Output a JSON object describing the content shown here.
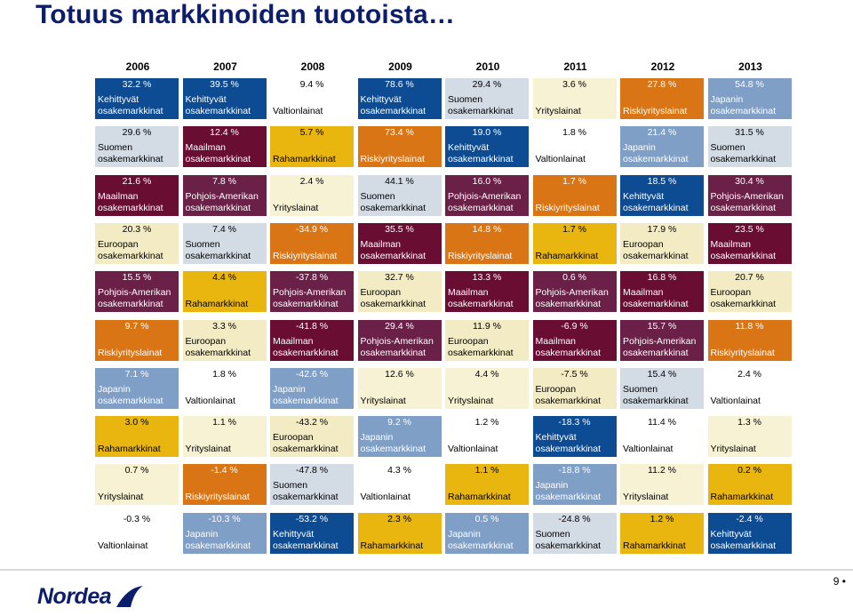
{
  "title": "Totuus markkinoiden tuotoista…",
  "colors": {
    "Kehittyvät\nosakemarkkinat": "#0d4c92",
    "Valtionlainat": "#ffffff",
    "Yrityslainat": "#f7f2d4",
    "Riskiyrityslainat": "#d97514",
    "Japanin\nosakemarkkinat": "#7f9fc6",
    "Suomen\nosakemarkkinat": "#d3dbe5",
    "Maailman\nosakemarkkinat": "#690d33",
    "Rahamarkkinat": "#e9b50f",
    "Pohjois-Amerikan\nosakemarkkinat": "#6b2048",
    "Euroopan\nosakemarkkinat": "#f3ebc3"
  },
  "years": [
    "2006",
    "2007",
    "2008",
    "2009",
    "2010",
    "2011",
    "2012",
    "2013"
  ],
  "columns": [
    [
      {
        "value": "32.2 %",
        "name": "Kehittyvät\nosakemarkkinat"
      },
      {
        "value": "29.6 %",
        "name": "Suomen\nosakemarkkinat"
      },
      {
        "value": "21.6 %",
        "name": "Maailman\nosakemarkkinat"
      },
      {
        "value": "20.3 %",
        "name": "Euroopan\nosakemarkkinat"
      },
      {
        "value": "15.5 %",
        "name": "Pohjois-Amerikan\nosakemarkkinat"
      },
      {
        "value": "9.7 %",
        "name": "Riskiyrityslainat"
      },
      {
        "value": "7.1 %",
        "name": "Japanin\nosakemarkkinat"
      },
      {
        "value": "3.0 %",
        "name": "Rahamarkkinat"
      },
      {
        "value": "0.7 %",
        "name": "Yrityslainat"
      },
      {
        "value": "-0.3 %",
        "name": "Valtionlainat"
      }
    ],
    [
      {
        "value": "39.5 %",
        "name": "Kehittyvät\nosakemarkkinat"
      },
      {
        "value": "12.4 %",
        "name": "Maailman\nosakemarkkinat"
      },
      {
        "value": "7.8 %",
        "name": "Pohjois-Amerikan\nosakemarkkinat"
      },
      {
        "value": "7.4 %",
        "name": "Suomen\nosakemarkkinat"
      },
      {
        "value": "4.4 %",
        "name": "Rahamarkkinat"
      },
      {
        "value": "3.3 %",
        "name": "Euroopan\nosakemarkkinat"
      },
      {
        "value": "1.8 %",
        "name": "Valtionlainat"
      },
      {
        "value": "1.1 %",
        "name": "Yrityslainat"
      },
      {
        "value": "-1.4 %",
        "name": "Riskiyrityslainat"
      },
      {
        "value": "-10.3 %",
        "name": "Japanin\nosakemarkkinat"
      }
    ],
    [
      {
        "value": "9.4 %",
        "name": "Valtionlainat"
      },
      {
        "value": "5.7 %",
        "name": "Rahamarkkinat"
      },
      {
        "value": "2.4 %",
        "name": "Yrityslainat"
      },
      {
        "value": "-34.9 %",
        "name": "Riskiyrityslainat"
      },
      {
        "value": "-37.8 %",
        "name": "Pohjois-Amerikan\nosakemarkkinat"
      },
      {
        "value": "-41.8 %",
        "name": "Maailman\nosakemarkkinat"
      },
      {
        "value": "-42.6 %",
        "name": "Japanin\nosakemarkkinat"
      },
      {
        "value": "-43.2 %",
        "name": "Euroopan\nosakemarkkinat"
      },
      {
        "value": "-47.8 %",
        "name": "Suomen\nosakemarkkinat"
      },
      {
        "value": "-53.2 %",
        "name": "Kehittyvät\nosakemarkkinat"
      }
    ],
    [
      {
        "value": "78.6 %",
        "name": "Kehittyvät\nosakemarkkinat"
      },
      {
        "value": "73.4 %",
        "name": "Riskiyrityslainat"
      },
      {
        "value": "44.1 %",
        "name": "Suomen\nosakemarkkinat"
      },
      {
        "value": "35.5 %",
        "name": "Maailman\nosakemarkkinat"
      },
      {
        "value": "32.7 %",
        "name": "Euroopan\nosakemarkkinat"
      },
      {
        "value": "29.4 %",
        "name": "Pohjois-Amerikan\nosakemarkkinat"
      },
      {
        "value": "12.6 %",
        "name": "Yrityslainat"
      },
      {
        "value": "9.2 %",
        "name": "Japanin\nosakemarkkinat"
      },
      {
        "value": "4.3 %",
        "name": "Valtionlainat"
      },
      {
        "value": "2.3 %",
        "name": "Rahamarkkinat"
      }
    ],
    [
      {
        "value": "29.4 %",
        "name": "Suomen\nosakemarkkinat"
      },
      {
        "value": "19.0 %",
        "name": "Kehittyvät\nosakemarkkinat"
      },
      {
        "value": "16.0 %",
        "name": "Pohjois-Amerikan\nosakemarkkinat"
      },
      {
        "value": "14.8 %",
        "name": "Riskiyrityslainat"
      },
      {
        "value": "13.3 %",
        "name": "Maailman\nosakemarkkinat"
      },
      {
        "value": "11.9 %",
        "name": "Euroopan\nosakemarkkinat"
      },
      {
        "value": "4.4 %",
        "name": "Yrityslainat"
      },
      {
        "value": "1.2 %",
        "name": "Valtionlainat"
      },
      {
        "value": "1.1 %",
        "name": "Rahamarkkinat"
      },
      {
        "value": "0.5 %",
        "name": "Japanin\nosakemarkkinat"
      }
    ],
    [
      {
        "value": "3.6 %",
        "name": "Yrityslainat"
      },
      {
        "value": "1.8 %",
        "name": "Valtionlainat"
      },
      {
        "value": "1.7 %",
        "name": "Riskiyrityslainat"
      },
      {
        "value": "1.7 %",
        "name": "Rahamarkkinat"
      },
      {
        "value": "0.6 %",
        "name": "Pohjois-Amerikan\nosakemarkkinat"
      },
      {
        "value": "-6.9 %",
        "name": "Maailman\nosakemarkkinat"
      },
      {
        "value": "-7.5 %",
        "name": "Euroopan\nosakemarkkinat"
      },
      {
        "value": "-18.3 %",
        "name": "Kehittyvät\nosakemarkkinat"
      },
      {
        "value": "-18.8 %",
        "name": "Japanin\nosakemarkkinat"
      },
      {
        "value": "-24.8 %",
        "name": "Suomen\nosakemarkkinat"
      }
    ],
    [
      {
        "value": "27.8 %",
        "name": "Riskiyrityslainat"
      },
      {
        "value": "21.4 %",
        "name": "Japanin\nosakemarkkinat"
      },
      {
        "value": "18.5 %",
        "name": "Kehittyvät\nosakemarkkinat"
      },
      {
        "value": "17.9 %",
        "name": "Euroopan\nosakemarkkinat"
      },
      {
        "value": "16.8 %",
        "name": "Maailman\nosakemarkkinat"
      },
      {
        "value": "15.7 %",
        "name": "Pohjois-Amerikan\nosakemarkkinat"
      },
      {
        "value": "15.4 %",
        "name": "Suomen\nosakemarkkinat"
      },
      {
        "value": "11.4 %",
        "name": "Valtionlainat"
      },
      {
        "value": "11.2 %",
        "name": "Yrityslainat"
      },
      {
        "value": "1.2 %",
        "name": "Rahamarkkinat"
      }
    ],
    [
      {
        "value": "54.8 %",
        "name": "Japanin\nosakemarkkinat"
      },
      {
        "value": "31.5 %",
        "name": "Suomen\nosakemarkkinat"
      },
      {
        "value": "30.4 %",
        "name": "Pohjois-Amerikan\nosakemarkkinat"
      },
      {
        "value": "23.5 %",
        "name": "Maailman\nosakemarkkinat"
      },
      {
        "value": "20.7 %",
        "name": "Euroopan\nosakemarkkinat"
      },
      {
        "value": "11.8 %",
        "name": "Riskiyrityslainat"
      },
      {
        "value": "2.4 %",
        "name": "Valtionlainat"
      },
      {
        "value": "1.3 %",
        "name": "Yrityslainat"
      },
      {
        "value": "0.2 %",
        "name": "Rahamarkkinat"
      },
      {
        "value": "-2.4 %",
        "name": "Kehittyvät\nosakemarkkinat"
      }
    ]
  ],
  "footer": {
    "logo_text": "Nordea",
    "page_number": "9 •"
  }
}
